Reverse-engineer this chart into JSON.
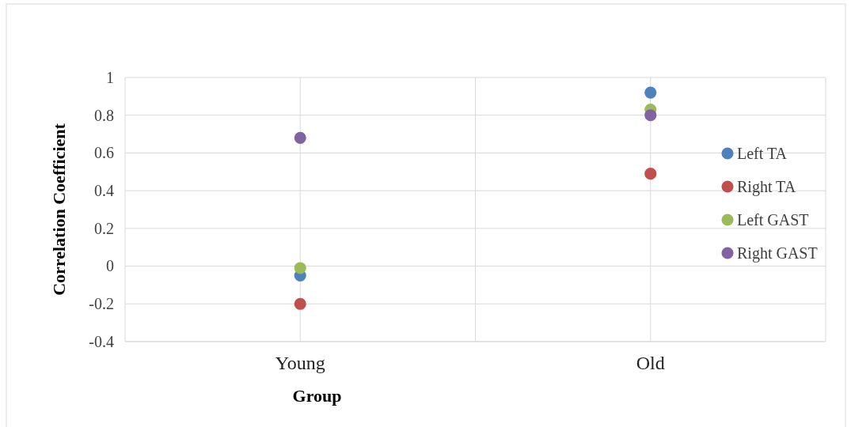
{
  "chart_data": {
    "type": "scatter",
    "xlabel": "Group",
    "ylabel": "Correlation Coefficient",
    "categories": [
      "Young",
      "Old"
    ],
    "ylim": [
      -0.4,
      1
    ],
    "yticks": [
      -0.4,
      -0.2,
      0,
      0.2,
      0.4,
      0.6,
      0.8,
      1
    ],
    "grid": true,
    "legend": "right",
    "marker": "circle",
    "series": [
      {
        "name": "Left TA",
        "color": "#4f81bd",
        "values": [
          -0.05,
          0.92
        ]
      },
      {
        "name": "Right TA",
        "color": "#c0504d",
        "values": [
          -0.2,
          0.49
        ]
      },
      {
        "name": "Left GAST",
        "color": "#9bbb59",
        "values": [
          -0.01,
          0.83
        ]
      },
      {
        "name": "Right GAST",
        "color": "#8064a2",
        "values": [
          0.68,
          0.8
        ]
      }
    ]
  }
}
